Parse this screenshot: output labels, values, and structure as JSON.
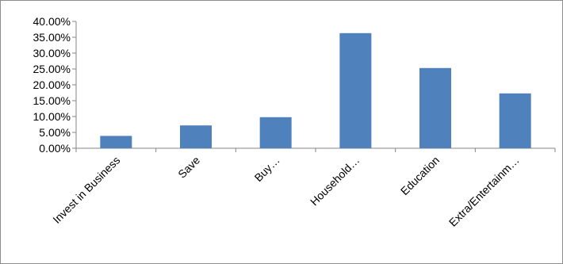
{
  "chart_data": {
    "type": "bar",
    "title": "",
    "xlabel": "",
    "ylabel": "",
    "categories": [
      "Invest in Business",
      "Save",
      "Buy…",
      "Household…",
      "Education",
      "Extra/Entertainm…"
    ],
    "values": [
      3.9,
      7.2,
      9.8,
      36.3,
      25.3,
      17.3
    ],
    "ylim": [
      0,
      40
    ],
    "y_ticks": [
      "0.00%",
      "5.00%",
      "10.00%",
      "15.00%",
      "20.00%",
      "25.00%",
      "30.00%",
      "35.00%",
      "40.00%"
    ],
    "grid": false,
    "legend": "none",
    "bar_color": "#4f81bd"
  }
}
